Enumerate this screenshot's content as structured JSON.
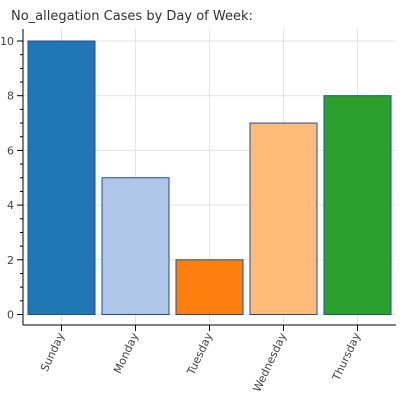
{
  "chart_data": {
    "type": "bar",
    "title": "No_allegation Cases by Day of Week:",
    "xlabel": "",
    "ylabel": "",
    "categories": [
      "Sunday",
      "Monday",
      "Tuesday",
      "Wednesday",
      "Thursday"
    ],
    "values": [
      10,
      5,
      2,
      7,
      8
    ],
    "colors": [
      "#1f77b4",
      "#aec7e8",
      "#ff7f0e",
      "#ffbb78",
      "#2ca02c"
    ],
    "bar_outline_color": "#1f4e96",
    "ylim": [
      0,
      10.5
    ],
    "y_ticks": [
      0,
      2,
      4,
      6,
      8,
      10
    ],
    "y_tick_labels": [
      "0",
      "2",
      "4",
      "6",
      "8",
      "10"
    ],
    "y_minor_ticks": [
      0.5,
      1,
      1.5,
      2.5,
      3,
      3.5,
      4.5,
      5,
      5.5,
      6.5,
      7,
      7.5,
      8.5,
      9,
      9.5
    ],
    "grid": true,
    "legend": "none"
  }
}
